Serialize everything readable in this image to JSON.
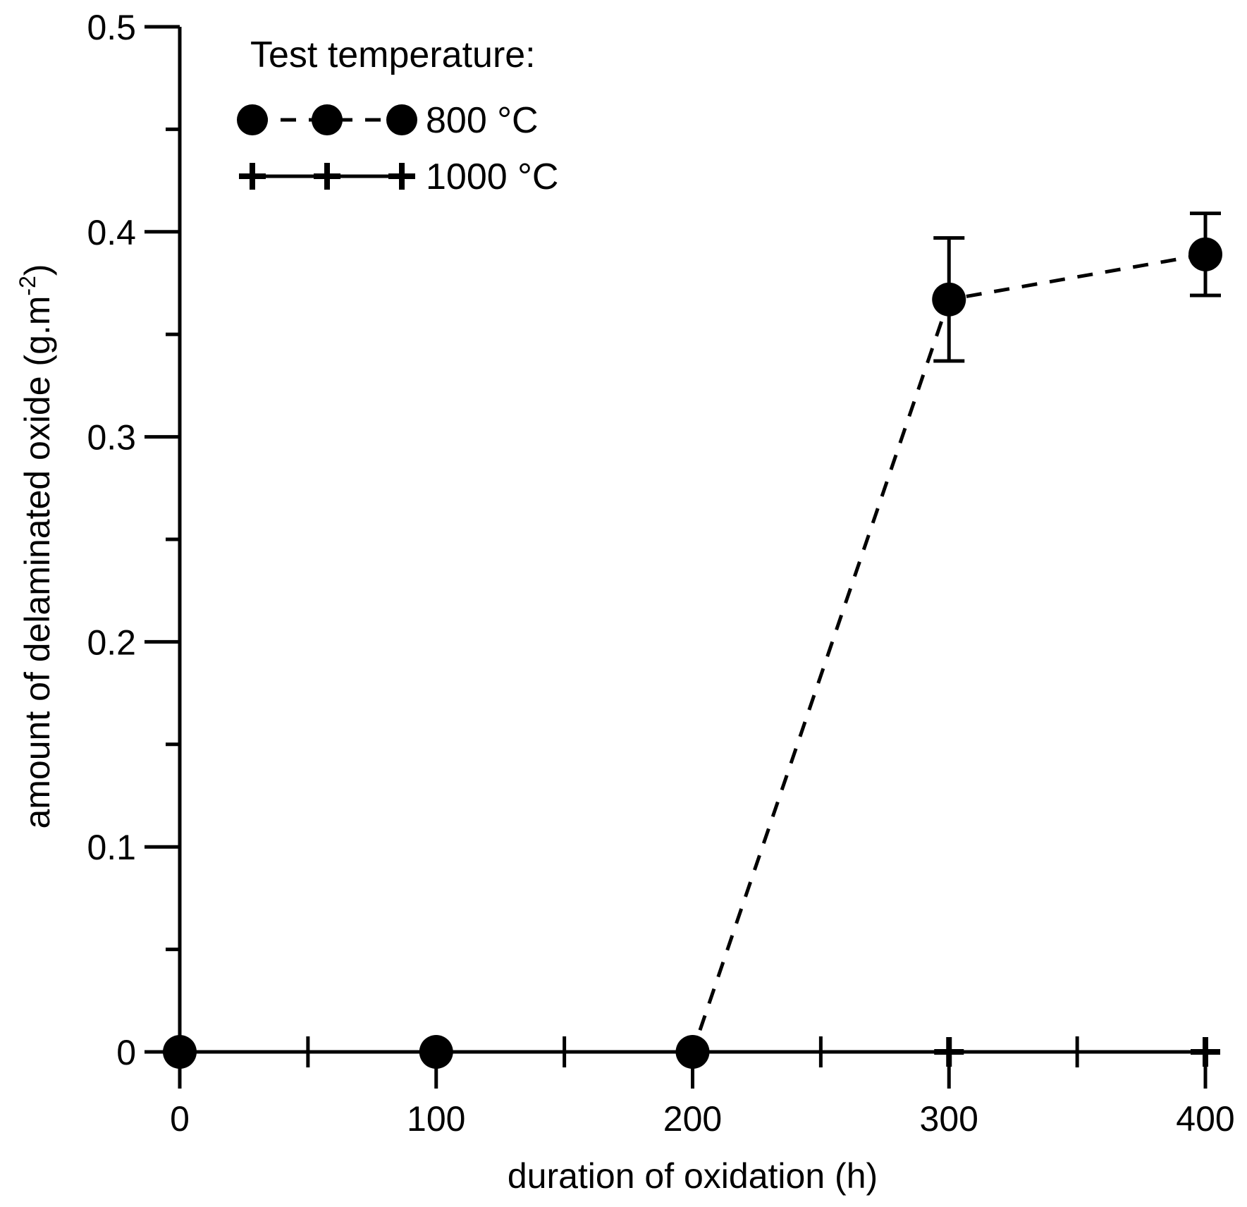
{
  "chart_data": {
    "type": "line",
    "title": "",
    "xlabel": "duration of oxidation (h)",
    "ylabel_main": "amount of delaminated oxide (g.m",
    "ylabel_sup": "-2",
    "ylabel_end": ")",
    "xlim": [
      0,
      400
    ],
    "ylim": [
      0,
      0.5
    ],
    "x_ticks": [
      0,
      100,
      200,
      300,
      400
    ],
    "x_tick_labels": [
      "0",
      "100",
      "200",
      "300",
      "400"
    ],
    "x_minor_ticks": [
      50,
      150,
      250,
      350
    ],
    "y_ticks": [
      0,
      0.1,
      0.2,
      0.3,
      0.4,
      0.5
    ],
    "y_tick_labels": [
      "0",
      "0.1",
      "0.2",
      "0.3",
      "0.4",
      "0.5"
    ],
    "y_minor_ticks": [
      0.05,
      0.15,
      0.25,
      0.35,
      0.45
    ],
    "grid": false,
    "legend": {
      "title": "Test temperature:",
      "placement": "top-left"
    },
    "series": [
      {
        "name": "800 °C",
        "marker": "circle",
        "line": "dashed",
        "x": [
          0,
          100,
          200,
          300,
          400
        ],
        "y": [
          0,
          0,
          0,
          0.367,
          0.389
        ],
        "error": [
          null,
          null,
          null,
          0.03,
          0.02
        ]
      },
      {
        "name": "1000 °C",
        "marker": "plus",
        "line": "solid",
        "x": [
          0,
          100,
          200,
          300,
          400
        ],
        "y": [
          0,
          0,
          0,
          0,
          0
        ]
      }
    ]
  }
}
